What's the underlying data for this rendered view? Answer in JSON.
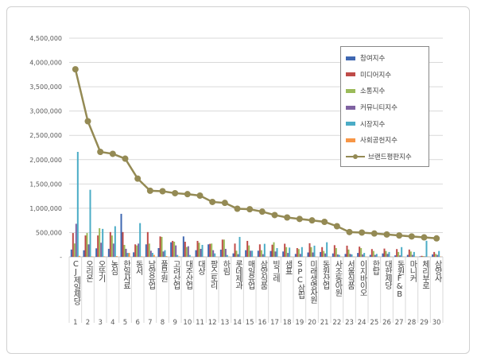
{
  "chart_data": {
    "type": "bar",
    "title": "",
    "ylim": [
      0,
      4500000
    ],
    "yticks": [
      "-",
      "500,000",
      "1,000,000",
      "1,500,000",
      "2,000,000",
      "2,500,000",
      "3,000,000",
      "3,500,000",
      "4,000,000",
      "4,500,000"
    ],
    "ytick_values": [
      0,
      500000,
      1000000,
      1500000,
      2000000,
      2500000,
      3000000,
      3500000,
      4000000,
      4500000
    ],
    "grid": true,
    "legend_position": "top-right",
    "ranks": [
      "1",
      "2",
      "3",
      "4",
      "5",
      "6",
      "7",
      "8",
      "9",
      "10",
      "11",
      "12",
      "13",
      "14",
      "15",
      "16",
      "17",
      "18",
      "19",
      "20",
      "21",
      "22",
      "23",
      "24",
      "25",
      "26",
      "27",
      "28",
      "29",
      "30"
    ],
    "categories": [
      "CJ제일제당",
      "오리온",
      "오뚜기",
      "농심",
      "한일사료",
      "동서",
      "남양유업",
      "풀무원",
      "고려산업",
      "대주산업",
      "대상",
      "팜스토리",
      "하림",
      "롯데제과",
      "매일유업",
      "삼양식품",
      "빙그레",
      "샘표",
      "SPC삼립",
      "미래생명자원",
      "동원산업",
      "사조동아원",
      "서울식품",
      "이지바이오",
      "한탑",
      "대한제당",
      "동원F&B",
      "마니커",
      "체리부로",
      "삼양사"
    ],
    "series": [
      {
        "name": "참여지수",
        "type": "bar",
        "color": "#3F67B1",
        "values": [
          150000,
          135000,
          175000,
          165000,
          885000,
          93000,
          257000,
          180000,
          300000,
          420000,
          137000,
          257000,
          148000,
          71000,
          137000,
          126000,
          120000,
          110000,
          60000,
          90000,
          100000,
          70000,
          60000,
          80000,
          40000,
          70000,
          30000,
          40000,
          10000,
          50000
        ]
      },
      {
        "name": "미디어지수",
        "type": "bar",
        "color": "#BF4B48",
        "values": [
          490000,
          440000,
          440000,
          510000,
          510000,
          257000,
          510000,
          420000,
          328000,
          311000,
          328000,
          268000,
          355000,
          273000,
          328000,
          257000,
          250000,
          270000,
          180000,
          280000,
          200000,
          240000,
          230000,
          210000,
          160000,
          170000,
          160000,
          150000,
          20000,
          100000
        ]
      },
      {
        "name": "소통지수",
        "type": "bar",
        "color": "#9BBB59",
        "values": [
          275000,
          490000,
          590000,
          440000,
          245000,
          235000,
          273000,
          410000,
          311000,
          202000,
          290000,
          273000,
          355000,
          126000,
          235000,
          137000,
          300000,
          200000,
          160000,
          200000,
          120000,
          180000,
          150000,
          180000,
          120000,
          120000,
          100000,
          110000,
          15000,
          60000
        ]
      },
      {
        "name": "커뮤니티지수",
        "type": "bar",
        "color": "#7F62A1",
        "values": [
          680000,
          257000,
          290000,
          273000,
          165000,
          273000,
          126000,
          110000,
          235000,
          218000,
          164000,
          137000,
          164000,
          55000,
          126000,
          55000,
          110000,
          80000,
          60000,
          90000,
          70000,
          50000,
          60000,
          50000,
          40000,
          60000,
          30000,
          40000,
          10000,
          40000
        ]
      },
      {
        "name": "시장지수",
        "type": "bar",
        "color": "#4BACC6",
        "values": [
          2160000,
          1380000,
          575000,
          630000,
          80000,
          694000,
          82000,
          137000,
          38000,
          38000,
          246000,
          71000,
          38000,
          410000,
          126000,
          268000,
          180000,
          190000,
          200000,
          230000,
          300000,
          40000,
          50000,
          80000,
          60000,
          100000,
          200000,
          100000,
          330000,
          120000
        ]
      },
      {
        "name": "사회공헌지수",
        "type": "bar",
        "color": "#F79646",
        "values": [
          20000,
          10000,
          10000,
          15000,
          80000,
          10000,
          40000,
          15000,
          10000,
          5000,
          5000,
          5000,
          5000,
          5000,
          5000,
          5000,
          5000,
          5000,
          5000,
          5000,
          5000,
          5000,
          5000,
          5000,
          5000,
          5000,
          5000,
          5000,
          5000,
          5000
        ]
      },
      {
        "name": "브랜드평판지수",
        "type": "line",
        "color": "#948A54",
        "values": [
          3860000,
          2790000,
          2160000,
          2120000,
          2020000,
          1610000,
          1360000,
          1350000,
          1310000,
          1290000,
          1260000,
          1130000,
          1110000,
          990000,
          980000,
          930000,
          860000,
          810000,
          780000,
          750000,
          720000,
          630000,
          510000,
          500000,
          480000,
          460000,
          440000,
          420000,
          400000,
          380000
        ]
      }
    ]
  }
}
